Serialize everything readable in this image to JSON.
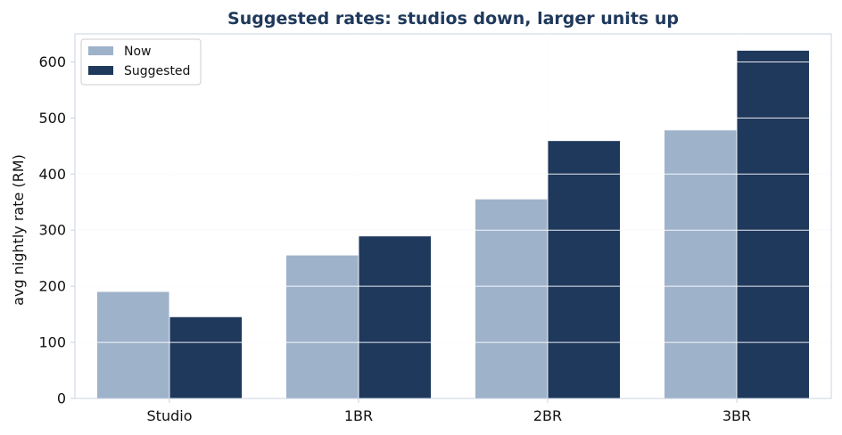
{
  "chart_data": {
    "type": "bar",
    "title": "Suggested rates: studios down, larger units up",
    "xlabel": "",
    "ylabel": "avg nightly rate (RM)",
    "categories": [
      "Studio",
      "1BR",
      "2BR",
      "3BR"
    ],
    "series": [
      {
        "name": "Now",
        "values": [
          190,
          255,
          355,
          478
        ],
        "color": "#9eb2ca"
      },
      {
        "name": "Suggested",
        "values": [
          145,
          289,
          459,
          620
        ],
        "color": "#1f395c"
      }
    ],
    "ylim": [
      0,
      650
    ],
    "yticks": [
      0,
      100,
      200,
      300,
      400,
      500,
      600
    ],
    "grid": true,
    "legend_position": "top-left",
    "title_color": "#1f395c",
    "axis_color": "#c9d3e3",
    "grid_color": "#eef0f4"
  }
}
